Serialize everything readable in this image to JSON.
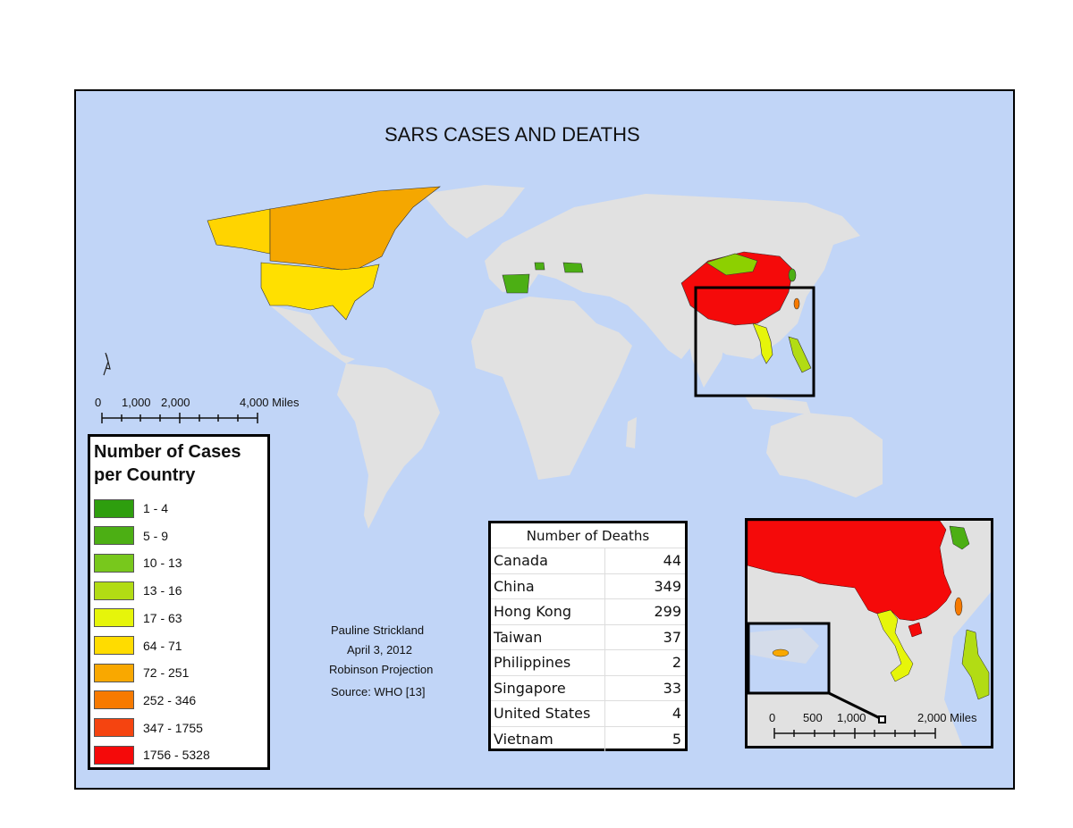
{
  "title": "SARS CASES AND DEATHS",
  "main_scale": {
    "labels": [
      "0",
      "1,000",
      "2,000",
      "4,000 Miles"
    ]
  },
  "north_arrow": "N",
  "legend": {
    "title": "Number of Cases per Country",
    "classes": [
      {
        "label": "1 - 4",
        "color": "#2e9e0e"
      },
      {
        "label": "5 - 9",
        "color": "#4caf14"
      },
      {
        "label": "10 - 13",
        "color": "#78c81c"
      },
      {
        "label": "13 - 16",
        "color": "#b2dc14"
      },
      {
        "label": "17 - 63",
        "color": "#e6f50a"
      },
      {
        "label": "64 - 71",
        "color": "#ffdc00"
      },
      {
        "label": "72 - 251",
        "color": "#f9a800"
      },
      {
        "label": "252 - 346",
        "color": "#f77a00"
      },
      {
        "label": "347 - 1755",
        "color": "#f54410"
      },
      {
        "label": "1756 - 5328",
        "color": "#f50a0a"
      }
    ]
  },
  "credits": {
    "author": "Pauline Strickland",
    "date": "April 3, 2012",
    "projection": "Robinson Projection",
    "source": "Source:  WHO [13]"
  },
  "deaths_table": {
    "header": "Number of Deaths",
    "rows": [
      {
        "country": "Canada",
        "deaths": "44"
      },
      {
        "country": "China",
        "deaths": "349"
      },
      {
        "country": "Hong Kong",
        "deaths": "299"
      },
      {
        "country": "Taiwan",
        "deaths": "37"
      },
      {
        "country": "Philippines",
        "deaths": "2"
      },
      {
        "country": "Singapore",
        "deaths": "33"
      },
      {
        "country": "United States",
        "deaths": "4"
      },
      {
        "country": "Vietnam",
        "deaths": "5"
      }
    ]
  },
  "inset_scale": {
    "labels": [
      "0",
      "500",
      "1,000",
      "2,000 Miles"
    ]
  },
  "colors": {
    "ocean": "#c1d5f7",
    "land": "#e1e1e1"
  }
}
